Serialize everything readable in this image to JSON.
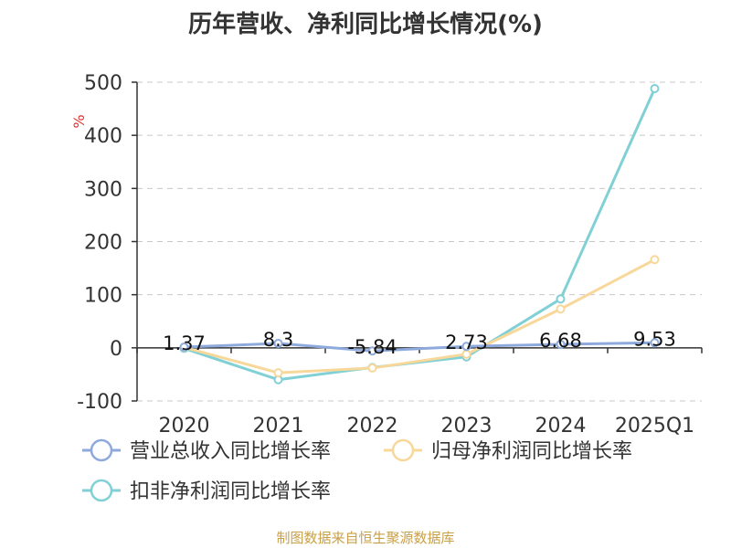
{
  "chart_data": {
    "type": "line",
    "title": "历年营收、净利同比增长情况(%)",
    "ylabel": "%",
    "categories": [
      "2020",
      "2021",
      "2022",
      "2023",
      "2024",
      "2025Q1"
    ],
    "ylim": [
      -100,
      500
    ],
    "yticks": [
      "500",
      "400",
      "300",
      "200",
      "100",
      "0",
      "-100"
    ],
    "ytick_values": [
      500,
      400,
      300,
      200,
      100,
      0,
      -100
    ],
    "grid": true,
    "legend_position": "bottom-left",
    "series": [
      {
        "name": "营业总收入同比增长率",
        "color": "#8eaadc",
        "values": [
          1.37,
          8.3,
          -5.84,
          2.73,
          6.68,
          9.53
        ],
        "labels": [
          "1.37",
          "8.3",
          "-5.84",
          "2.73",
          "6.68",
          "9.53"
        ]
      },
      {
        "name": "归母净利润同比增长率",
        "color": "#f8d89a",
        "values": [
          1.0,
          -47,
          -38,
          -12,
          73,
          166
        ]
      },
      {
        "name": "扣非净利润同比增长率",
        "color": "#80d0d6",
        "values": [
          -1.0,
          -60,
          -37,
          -17,
          92,
          488
        ]
      }
    ]
  },
  "footer": {
    "source": "制图数据来自恒生聚源数据库"
  }
}
